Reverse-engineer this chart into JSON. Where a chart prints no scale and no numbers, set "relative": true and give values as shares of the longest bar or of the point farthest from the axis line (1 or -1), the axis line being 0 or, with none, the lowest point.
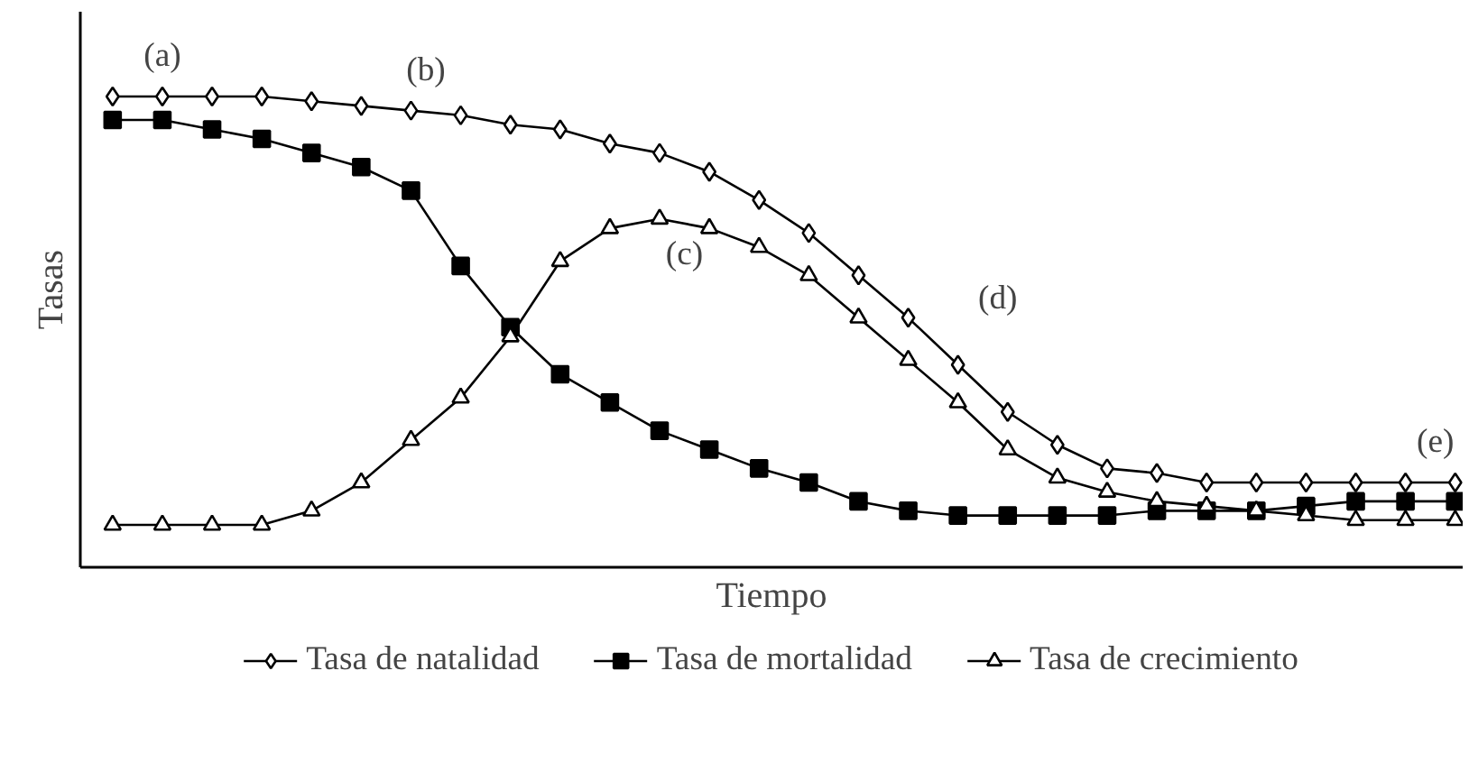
{
  "chart_data": {
    "type": "line",
    "relative": true,
    "xlabel": "Tiempo",
    "ylabel": "Tasas",
    "categories": [
      null,
      null,
      null,
      null,
      null,
      null,
      null,
      null,
      null,
      null,
      null,
      null,
      null,
      null,
      null,
      null,
      null,
      null,
      null,
      null,
      null,
      null,
      null,
      null,
      null,
      null,
      null,
      null
    ],
    "series": [
      {
        "name": "Tasa de natalidad",
        "color": "#000000",
        "marker": "diamond",
        "values": [
          1,
          1,
          1,
          1,
          0.99,
          0.98,
          0.97,
          0.96,
          0.94,
          0.93,
          0.9,
          0.88,
          0.84,
          0.78,
          0.71,
          0.62,
          0.53,
          0.43,
          0.33,
          0.26,
          0.21,
          0.2,
          0.18,
          0.18,
          0.18,
          0.18,
          0.18,
          0.18
        ]
      },
      {
        "name": "Tasa de mortalidad",
        "color": "#000000",
        "marker": "square",
        "values": [
          0.95,
          0.95,
          0.93,
          0.91,
          0.88,
          0.85,
          0.8,
          0.64,
          0.51,
          0.41,
          0.35,
          0.29,
          0.25,
          0.21,
          0.18,
          0.14,
          0.12,
          0.11,
          0.11,
          0.11,
          0.11,
          0.12,
          0.12,
          0.12,
          0.13,
          0.14,
          0.14,
          0.14
        ]
      },
      {
        "name": "Tasa de crecimiento",
        "color": "#000000",
        "marker": "triangle",
        "values": [
          0.09,
          0.09,
          0.09,
          0.09,
          0.12,
          0.18,
          0.27,
          0.36,
          0.49,
          0.65,
          0.72,
          0.74,
          0.72,
          0.68,
          0.62,
          0.53,
          0.44,
          0.35,
          0.25,
          0.19,
          0.16,
          0.14,
          0.13,
          0.12,
          0.11,
          0.1,
          0.1,
          0.1
        ]
      }
    ],
    "annotations": [
      "(a)",
      "(b)",
      "(c)",
      "(d)",
      "(e)"
    ],
    "legend": "bottom",
    "line_style": "solid"
  }
}
